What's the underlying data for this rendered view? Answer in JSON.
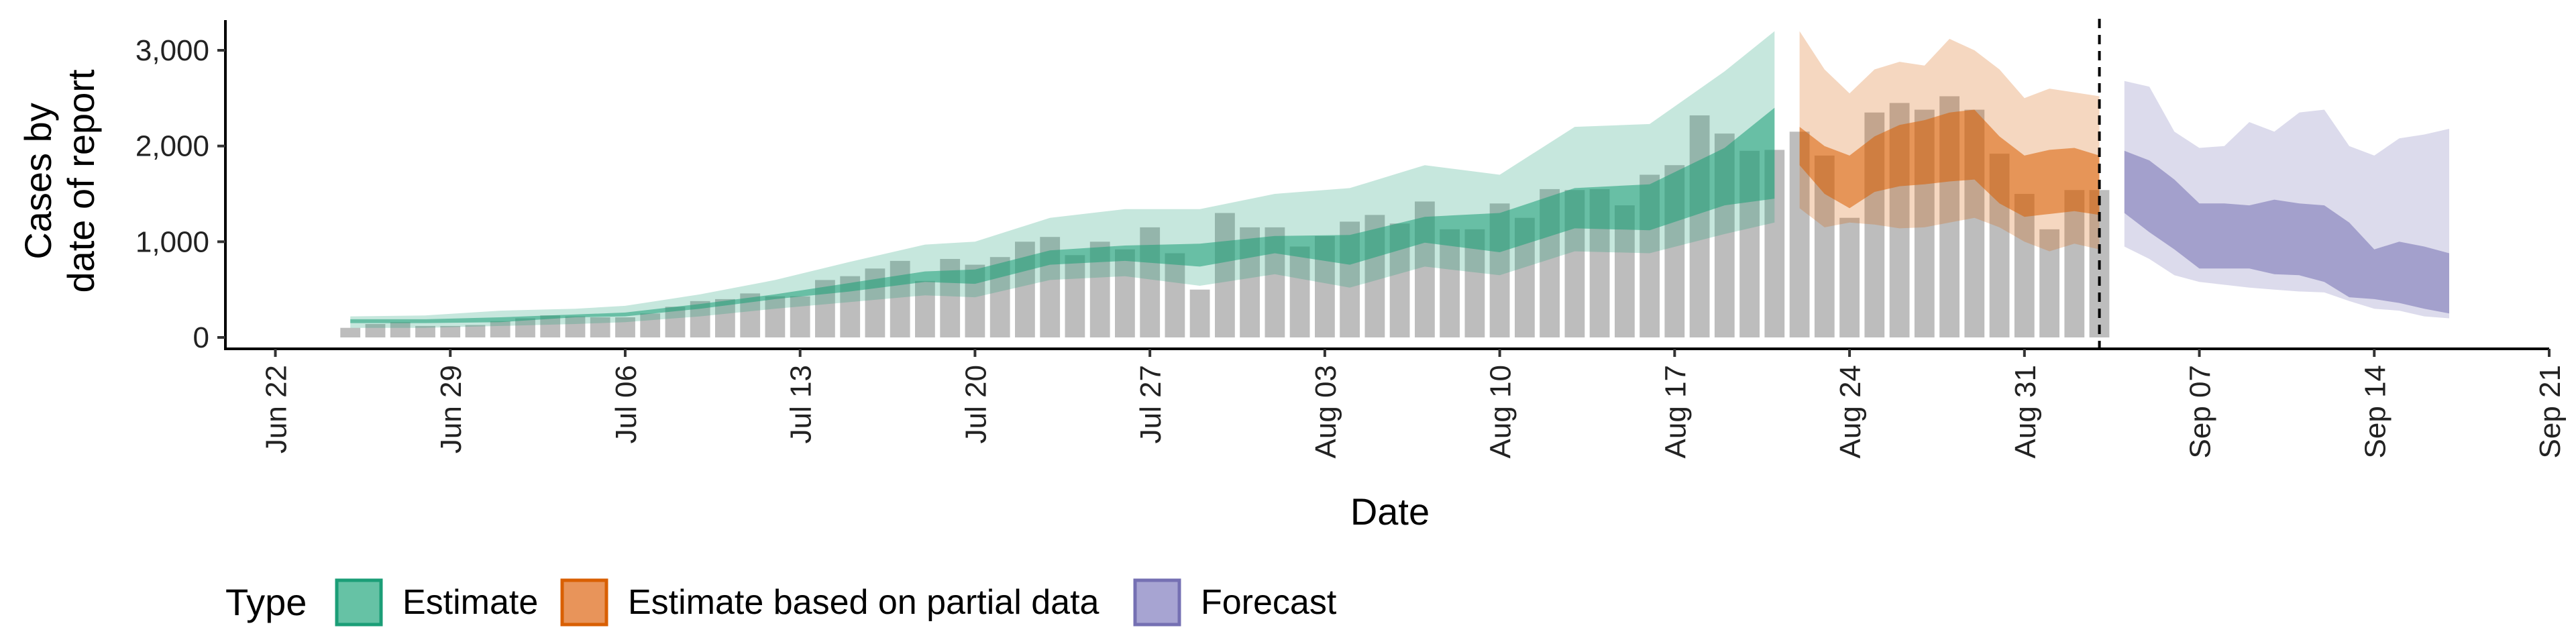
{
  "chart_data": {
    "type": "bar",
    "xlabel": "Date",
    "ylabel_lines": [
      "Cases by",
      "date of report"
    ],
    "ylim": [
      0,
      3250
    ],
    "yticks": [
      0,
      1000,
      2000,
      3000
    ],
    "ytick_labels": [
      "0",
      "1,000",
      "2,000",
      "3,000"
    ],
    "xlim": [
      "2020-06-20",
      "2020-09-21"
    ],
    "xticks": [
      "2020-06-22",
      "2020-06-29",
      "2020-07-06",
      "2020-07-13",
      "2020-07-20",
      "2020-07-27",
      "2020-08-03",
      "2020-08-10",
      "2020-08-17",
      "2020-08-24",
      "2020-08-31",
      "2020-09-07",
      "2020-09-14",
      "2020-09-21"
    ],
    "xtick_labels": [
      "Jun 22",
      "Jun 29",
      "Jul 06",
      "Jul 13",
      "Jul 20",
      "Jul 27",
      "Aug 03",
      "Aug 10",
      "Aug 17",
      "Aug 24",
      "Aug 31",
      "Sep 07",
      "Sep 14",
      "Sep 21"
    ],
    "vline_date": "2020-09-03",
    "grid": false,
    "legend": {
      "title": "Type",
      "position": "bottom",
      "items": [
        {
          "label": "Estimate",
          "fill": "#66c2a5",
          "stroke": "#1b9e77"
        },
        {
          "label": "Estimate based on partial data",
          "fill": "#e8945a",
          "stroke": "#d95f02"
        },
        {
          "label": "Forecast",
          "fill": "#a7a4d2",
          "stroke": "#7570b3"
        }
      ]
    },
    "bars": {
      "color": "#bdbdbd",
      "dates": [
        "2020-06-25",
        "2020-06-26",
        "2020-06-27",
        "2020-06-28",
        "2020-06-29",
        "2020-06-30",
        "2020-07-01",
        "2020-07-02",
        "2020-07-03",
        "2020-07-04",
        "2020-07-05",
        "2020-07-06",
        "2020-07-07",
        "2020-07-08",
        "2020-07-09",
        "2020-07-10",
        "2020-07-11",
        "2020-07-12",
        "2020-07-13",
        "2020-07-14",
        "2020-07-15",
        "2020-07-16",
        "2020-07-17",
        "2020-07-18",
        "2020-07-19",
        "2020-07-20",
        "2020-07-21",
        "2020-07-22",
        "2020-07-23",
        "2020-07-24",
        "2020-07-25",
        "2020-07-26",
        "2020-07-27",
        "2020-07-28",
        "2020-07-29",
        "2020-07-30",
        "2020-07-31",
        "2020-08-01",
        "2020-08-02",
        "2020-08-03",
        "2020-08-04",
        "2020-08-05",
        "2020-08-06",
        "2020-08-07",
        "2020-08-08",
        "2020-08-09",
        "2020-08-10",
        "2020-08-11",
        "2020-08-12",
        "2020-08-13",
        "2020-08-14",
        "2020-08-15",
        "2020-08-16",
        "2020-08-17",
        "2020-08-18",
        "2020-08-19",
        "2020-08-20",
        "2020-08-21",
        "2020-08-22",
        "2020-08-23",
        "2020-08-24",
        "2020-08-25",
        "2020-08-26",
        "2020-08-27",
        "2020-08-28",
        "2020-08-29",
        "2020-08-30",
        "2020-08-31",
        "2020-09-01",
        "2020-09-02",
        "2020-09-03"
      ],
      "values": [
        100,
        140,
        160,
        120,
        120,
        130,
        170,
        200,
        230,
        220,
        210,
        210,
        250,
        320,
        380,
        400,
        460,
        430,
        430,
        600,
        640,
        720,
        800,
        590,
        820,
        760,
        840,
        1000,
        1050,
        860,
        1000,
        920,
        1150,
        880,
        500,
        1300,
        1150,
        1150,
        950,
        1060,
        1210,
        1280,
        1190,
        1420,
        1130,
        1130,
        1400,
        1250,
        1550,
        1540,
        1550,
        1380,
        1700,
        1800,
        2320,
        2130,
        1950,
        1960,
        2150,
        1900,
        1250,
        2350,
        2450,
        2380,
        2520,
        2380,
        1920,
        1500,
        1130,
        1540,
        1540
      ]
    },
    "series": [
      {
        "name": "Estimate",
        "fill": "#1b9e77",
        "dates": [
          "2020-06-25",
          "2020-06-28",
          "2020-07-01",
          "2020-07-04",
          "2020-07-06",
          "2020-07-09",
          "2020-07-12",
          "2020-07-15",
          "2020-07-18",
          "2020-07-20",
          "2020-07-23",
          "2020-07-26",
          "2020-07-29",
          "2020-08-01",
          "2020-08-04",
          "2020-08-07",
          "2020-08-10",
          "2020-08-13",
          "2020-08-16",
          "2020-08-19",
          "2020-08-21"
        ],
        "lower90": [
          100,
          100,
          120,
          140,
          160,
          220,
          300,
          370,
          440,
          420,
          600,
          640,
          540,
          660,
          520,
          740,
          650,
          900,
          880,
          1080,
          1200
        ],
        "lower50": [
          150,
          150,
          160,
          210,
          220,
          300,
          400,
          480,
          580,
          560,
          760,
          800,
          740,
          880,
          760,
          990,
          890,
          1140,
          1120,
          1380,
          1450
        ],
        "upper50": [
          190,
          190,
          210,
          240,
          260,
          350,
          450,
          570,
          690,
          710,
          910,
          960,
          980,
          1060,
          1070,
          1260,
          1300,
          1560,
          1600,
          1980,
          2400
        ],
        "upper90": [
          220,
          230,
          280,
          300,
          330,
          450,
          600,
          790,
          970,
          1000,
          1250,
          1340,
          1340,
          1500,
          1560,
          1800,
          1700,
          2200,
          2230,
          2780,
          3200
        ]
      },
      {
        "name": "Estimate based on partial data",
        "fill": "#d95f02",
        "dates": [
          "2020-08-22",
          "2020-08-23",
          "2020-08-24",
          "2020-08-25",
          "2020-08-26",
          "2020-08-27",
          "2020-08-28",
          "2020-08-29",
          "2020-08-30",
          "2020-08-31",
          "2020-09-01",
          "2020-09-02",
          "2020-09-03"
        ],
        "lower90": [
          1350,
          1150,
          1200,
          1180,
          1140,
          1150,
          1200,
          1250,
          1150,
          1000,
          900,
          980,
          920
        ],
        "lower50": [
          1800,
          1500,
          1350,
          1520,
          1580,
          1600,
          1630,
          1650,
          1400,
          1260,
          1290,
          1320,
          1280
        ],
        "upper50": [
          2200,
          2000,
          1900,
          2100,
          2220,
          2270,
          2350,
          2380,
          2100,
          1900,
          1960,
          1980,
          1900
        ],
        "upper90": [
          3200,
          2800,
          2550,
          2800,
          2880,
          2840,
          3120,
          3000,
          2800,
          2500,
          2600,
          2560,
          2520
        ]
      },
      {
        "name": "Forecast",
        "fill": "#7570b3",
        "dates": [
          "2020-09-04",
          "2020-09-05",
          "2020-09-06",
          "2020-09-07",
          "2020-09-08",
          "2020-09-09",
          "2020-09-10",
          "2020-09-11",
          "2020-09-12",
          "2020-09-13",
          "2020-09-14",
          "2020-09-15",
          "2020-09-16",
          "2020-09-17"
        ],
        "lower90": [
          950,
          820,
          650,
          580,
          550,
          520,
          500,
          480,
          470,
          380,
          300,
          280,
          220,
          200
        ],
        "lower50": [
          1300,
          1100,
          920,
          720,
          720,
          720,
          660,
          650,
          580,
          420,
          400,
          360,
          300,
          250
        ],
        "upper50": [
          1950,
          1850,
          1650,
          1400,
          1400,
          1380,
          1440,
          1400,
          1380,
          1200,
          920,
          1000,
          950,
          880
        ],
        "upper90": [
          2680,
          2620,
          2150,
          1980,
          2000,
          2250,
          2150,
          2350,
          2380,
          2000,
          1900,
          2080,
          2120,
          2180
        ]
      }
    ]
  }
}
